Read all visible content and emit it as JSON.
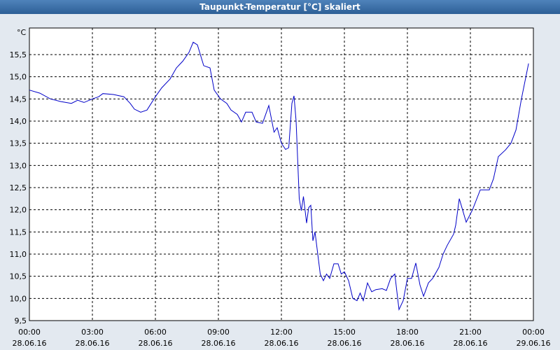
{
  "chart_data": {
    "type": "line",
    "title": "Taupunkt-Temperatur [°C] skaliert",
    "y_unit": "°C",
    "series": [
      {
        "name": "Taupunkt",
        "color": "#0000c8",
        "x": [
          0,
          0.5,
          1,
          1.5,
          2,
          2.3,
          2.6,
          3,
          3.3,
          3.5,
          4,
          4.5,
          4.8,
          5,
          5.3,
          5.6,
          6,
          6.3,
          6.7,
          7,
          7.3,
          7.6,
          7.8,
          8,
          8.3,
          8.6,
          8.8,
          9.1,
          9.4,
          9.6,
          9.9,
          10.1,
          10.3,
          10.6,
          10.8,
          11.1,
          11.4,
          11.65,
          11.8,
          12,
          12.2,
          12.35,
          12.5,
          12.6,
          12.7,
          12.85,
          12.95,
          13.05,
          13.2,
          13.3,
          13.4,
          13.5,
          13.6,
          13.85,
          14,
          14.15,
          14.3,
          14.5,
          14.7,
          14.85,
          15,
          15.2,
          15.4,
          15.6,
          15.75,
          15.9,
          16.1,
          16.3,
          16.5,
          16.8,
          17,
          17.2,
          17.4,
          17.6,
          17.8,
          18,
          18.2,
          18.4,
          18.6,
          18.77,
          19,
          19.2,
          19.5,
          19.7,
          19.9,
          20.2,
          20.3,
          20.47,
          20.8,
          21.1,
          21.47,
          21.9,
          22.1,
          22.33,
          22.67,
          22.93,
          23.17,
          23.43,
          23.77
        ],
        "values": [
          14.7,
          14.63,
          14.5,
          14.44,
          14.4,
          14.47,
          14.42,
          14.5,
          14.55,
          14.62,
          14.6,
          14.55,
          14.4,
          14.27,
          14.2,
          14.25,
          14.55,
          14.75,
          14.95,
          15.2,
          15.35,
          15.55,
          15.78,
          15.72,
          15.25,
          15.2,
          14.7,
          14.5,
          14.4,
          14.25,
          14.15,
          13.98,
          14.2,
          14.2,
          13.98,
          13.95,
          14.35,
          13.75,
          13.85,
          13.5,
          13.36,
          13.4,
          14.4,
          14.57,
          14,
          12.25,
          11.98,
          12.3,
          11.7,
          12.05,
          12.1,
          11.3,
          11.5,
          10.55,
          10.4,
          10.55,
          10.45,
          10.78,
          10.78,
          10.55,
          10.6,
          10.4,
          10,
          9.95,
          10.12,
          9.95,
          10.35,
          10.15,
          10.2,
          10.22,
          10.18,
          10.45,
          10.55,
          9.75,
          9.95,
          10.45,
          10.45,
          10.8,
          10.3,
          10.05,
          10.35,
          10.45,
          10.7,
          11,
          11.2,
          11.45,
          11.65,
          12.25,
          11.72,
          12,
          12.45,
          12.45,
          12.7,
          13.2,
          13.35,
          13.5,
          13.8,
          14.5,
          15.3
        ]
      }
    ],
    "xlim": [
      0,
      24
    ],
    "xticks": [
      {
        "value": 0,
        "label": "00:00"
      },
      {
        "value": 3,
        "label": "03:00"
      },
      {
        "value": 6,
        "label": "06:00"
      },
      {
        "value": 9,
        "label": "09:00"
      },
      {
        "value": 12,
        "label": "12:00"
      },
      {
        "value": 15,
        "label": "15:00"
      },
      {
        "value": 18,
        "label": "18:00"
      },
      {
        "value": 21,
        "label": "21:00"
      },
      {
        "value": 24,
        "label": "00:00"
      }
    ],
    "xtick_dates": [
      "28.06.16",
      "28.06.16",
      "28.06.16",
      "28.06.16",
      "28.06.16",
      "28.06.16",
      "28.06.16",
      "28.06.16",
      "29.06.16"
    ],
    "ylim": [
      9.5,
      16.1
    ],
    "yticks": [
      {
        "value": 9.5,
        "label": "9,5"
      },
      {
        "value": 10,
        "label": "10,0"
      },
      {
        "value": 10.5,
        "label": "10,5"
      },
      {
        "value": 11,
        "label": "11,0"
      },
      {
        "value": 11.5,
        "label": "11,5"
      },
      {
        "value": 12,
        "label": "12,0"
      },
      {
        "value": 12.5,
        "label": "12,5"
      },
      {
        "value": 13,
        "label": "13,0"
      },
      {
        "value": 13.5,
        "label": "13,5"
      },
      {
        "value": 14,
        "label": "14,0"
      },
      {
        "value": 14.5,
        "label": "14,5"
      },
      {
        "value": 15,
        "label": "15,0"
      },
      {
        "value": 15.5,
        "label": "15,5"
      }
    ],
    "grid": true
  }
}
